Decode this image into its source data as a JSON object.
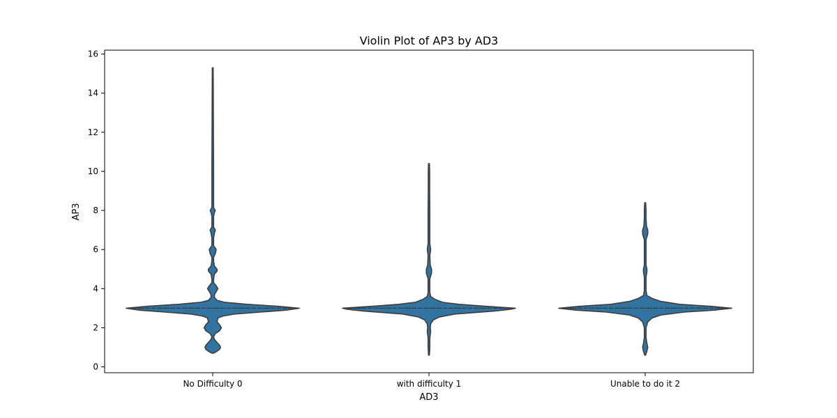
{
  "chart_data": {
    "type": "violin",
    "title": "Violin Plot of AP3 by AD3",
    "xlabel": "AD3",
    "ylabel": "AP3",
    "ylim": [
      -0.3,
      16.2
    ],
    "yticks": [
      0,
      2,
      4,
      6,
      8,
      10,
      12,
      14,
      16
    ],
    "categories": [
      "No Difficulty 0",
      "with difficulty 1",
      "Unable to do it 2"
    ],
    "color": "#3274a1",
    "outline_color": "#3d3d3d",
    "inner": "quartile",
    "violins": [
      {
        "category": "No Difficulty 0",
        "y_min": 0.7,
        "y_max": 15.3,
        "quartiles": [
          3,
          3,
          3
        ],
        "profile": [
          [
            0.7,
            0.01
          ],
          [
            0.8,
            0.05
          ],
          [
            0.9,
            0.08
          ],
          [
            1.0,
            0.09
          ],
          [
            1.1,
            0.08
          ],
          [
            1.25,
            0.05
          ],
          [
            1.4,
            0.02
          ],
          [
            1.55,
            0.01
          ],
          [
            1.7,
            0.03
          ],
          [
            1.85,
            0.08
          ],
          [
            2.0,
            0.1
          ],
          [
            2.15,
            0.08
          ],
          [
            2.3,
            0.05
          ],
          [
            2.5,
            0.06
          ],
          [
            2.6,
            0.12
          ],
          [
            2.7,
            0.25
          ],
          [
            2.8,
            0.55
          ],
          [
            2.9,
            0.85
          ],
          [
            3.0,
            1.0
          ],
          [
            3.1,
            0.75
          ],
          [
            3.2,
            0.4
          ],
          [
            3.3,
            0.14
          ],
          [
            3.4,
            0.05
          ],
          [
            3.55,
            0.02
          ],
          [
            3.7,
            0.02
          ],
          [
            3.85,
            0.04
          ],
          [
            4.0,
            0.06
          ],
          [
            4.15,
            0.04
          ],
          [
            4.3,
            0.01
          ],
          [
            4.5,
            0.01
          ],
          [
            4.75,
            0.02
          ],
          [
            4.9,
            0.05
          ],
          [
            5.0,
            0.05
          ],
          [
            5.15,
            0.02
          ],
          [
            5.4,
            0.01
          ],
          [
            5.6,
            0.01
          ],
          [
            5.8,
            0.03
          ],
          [
            6.0,
            0.04
          ],
          [
            6.2,
            0.01
          ],
          [
            6.6,
            0.01
          ],
          [
            6.85,
            0.02
          ],
          [
            7.0,
            0.03
          ],
          [
            7.15,
            0.01
          ],
          [
            7.7,
            0.01
          ],
          [
            7.9,
            0.02
          ],
          [
            8.0,
            0.03
          ],
          [
            8.15,
            0.01
          ],
          [
            9.0,
            0.01
          ],
          [
            10.0,
            0.01
          ],
          [
            12.0,
            0.008
          ],
          [
            15.3,
            0.005
          ]
        ]
      },
      {
        "category": "with difficulty 1",
        "y_min": 0.6,
        "y_max": 10.4,
        "quartiles": [
          3,
          3,
          3
        ],
        "profile": [
          [
            0.6,
            0.005
          ],
          [
            1.0,
            0.01
          ],
          [
            1.5,
            0.01
          ],
          [
            1.8,
            0.02
          ],
          [
            2.0,
            0.015
          ],
          [
            2.2,
            0.02
          ],
          [
            2.4,
            0.05
          ],
          [
            2.55,
            0.12
          ],
          [
            2.7,
            0.3
          ],
          [
            2.85,
            0.75
          ],
          [
            2.95,
            0.95
          ],
          [
            3.0,
            1.0
          ],
          [
            3.1,
            0.65
          ],
          [
            3.2,
            0.35
          ],
          [
            3.3,
            0.16
          ],
          [
            3.45,
            0.07
          ],
          [
            3.6,
            0.02
          ],
          [
            3.8,
            0.01
          ],
          [
            4.5,
            0.01
          ],
          [
            4.8,
            0.03
          ],
          [
            5.0,
            0.03
          ],
          [
            5.2,
            0.015
          ],
          [
            5.7,
            0.01
          ],
          [
            6.0,
            0.02
          ],
          [
            6.3,
            0.01
          ],
          [
            7.0,
            0.01
          ],
          [
            8.0,
            0.01
          ],
          [
            9.0,
            0.008
          ],
          [
            10.0,
            0.008
          ],
          [
            10.4,
            0.005
          ]
        ]
      },
      {
        "category": "Unable to do it 2",
        "y_min": 0.6,
        "y_max": 8.4,
        "quartiles": [
          3,
          3,
          3
        ],
        "profile": [
          [
            0.6,
            0.005
          ],
          [
            0.8,
            0.02
          ],
          [
            1.0,
            0.03
          ],
          [
            1.2,
            0.02
          ],
          [
            1.5,
            0.01
          ],
          [
            2.0,
            0.01
          ],
          [
            2.3,
            0.03
          ],
          [
            2.5,
            0.08
          ],
          [
            2.65,
            0.18
          ],
          [
            2.8,
            0.45
          ],
          [
            2.9,
            0.8
          ],
          [
            3.0,
            1.0
          ],
          [
            3.1,
            0.75
          ],
          [
            3.2,
            0.4
          ],
          [
            3.35,
            0.18
          ],
          [
            3.5,
            0.08
          ],
          [
            3.65,
            0.02
          ],
          [
            3.9,
            0.01
          ],
          [
            4.6,
            0.01
          ],
          [
            4.85,
            0.02
          ],
          [
            5.0,
            0.02
          ],
          [
            5.2,
            0.01
          ],
          [
            6.5,
            0.01
          ],
          [
            6.8,
            0.03
          ],
          [
            7.0,
            0.03
          ],
          [
            7.2,
            0.015
          ],
          [
            7.6,
            0.01
          ],
          [
            8.0,
            0.01
          ],
          [
            8.4,
            0.005
          ]
        ]
      }
    ]
  }
}
